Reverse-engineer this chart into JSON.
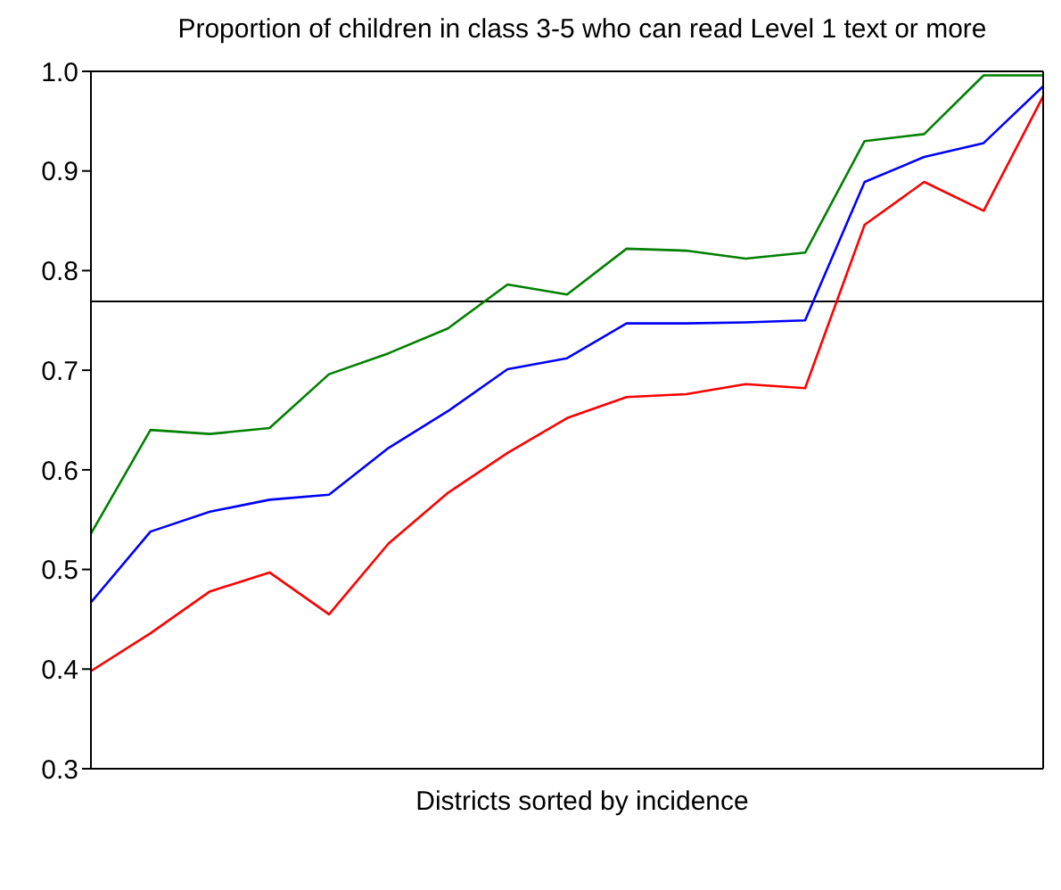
{
  "chart_data": {
    "type": "line",
    "title": "Proportion of children in class 3-5 who can read Level 1 text or more",
    "xlabel": "Districts sorted by incidence",
    "categories": [
      null,
      null,
      null,
      null,
      null,
      null,
      null,
      null,
      null,
      null,
      null,
      null,
      null,
      null,
      null,
      null,
      null
    ],
    "series": [
      {
        "color": "#008000",
        "values": [
          0.536,
          0.64,
          0.636,
          0.642,
          0.696,
          0.717,
          0.742,
          0.786,
          0.776,
          0.822,
          0.82,
          0.812,
          0.818,
          0.93,
          0.937,
          0.996,
          0.996
        ]
      },
      {
        "color": "#0000ff",
        "values": [
          0.467,
          0.538,
          0.558,
          0.57,
          0.575,
          0.622,
          0.659,
          0.701,
          0.712,
          0.747,
          0.747,
          0.748,
          0.75,
          0.889,
          0.914,
          0.928,
          0.985
        ]
      },
      {
        "color": "#ff0000",
        "values": [
          0.398,
          0.436,
          0.478,
          0.497,
          0.455,
          0.526,
          0.577,
          0.617,
          0.652,
          0.673,
          0.676,
          0.686,
          0.682,
          0.846,
          0.889,
          0.86,
          0.975
        ]
      }
    ],
    "ylim": [
      0.3,
      1.0
    ],
    "yticks": [
      {
        "value": 0.3,
        "label": "0.3"
      },
      {
        "value": 0.4,
        "label": "0.4"
      },
      {
        "value": 0.5,
        "label": "0.5"
      },
      {
        "value": 0.6,
        "label": "0.6"
      },
      {
        "value": 0.7,
        "label": "0.7"
      },
      {
        "value": 0.8,
        "label": "0.8"
      },
      {
        "value": 0.9,
        "label": "0.9"
      },
      {
        "value": 1.0,
        "label": "1.0"
      }
    ],
    "ref_lines": [
      {
        "axis": "y",
        "value": 0.769,
        "color": "#000000"
      }
    ],
    "grid": false,
    "legend": false,
    "marker": "none",
    "line_style": "solid",
    "tick_labels": "y"
  }
}
